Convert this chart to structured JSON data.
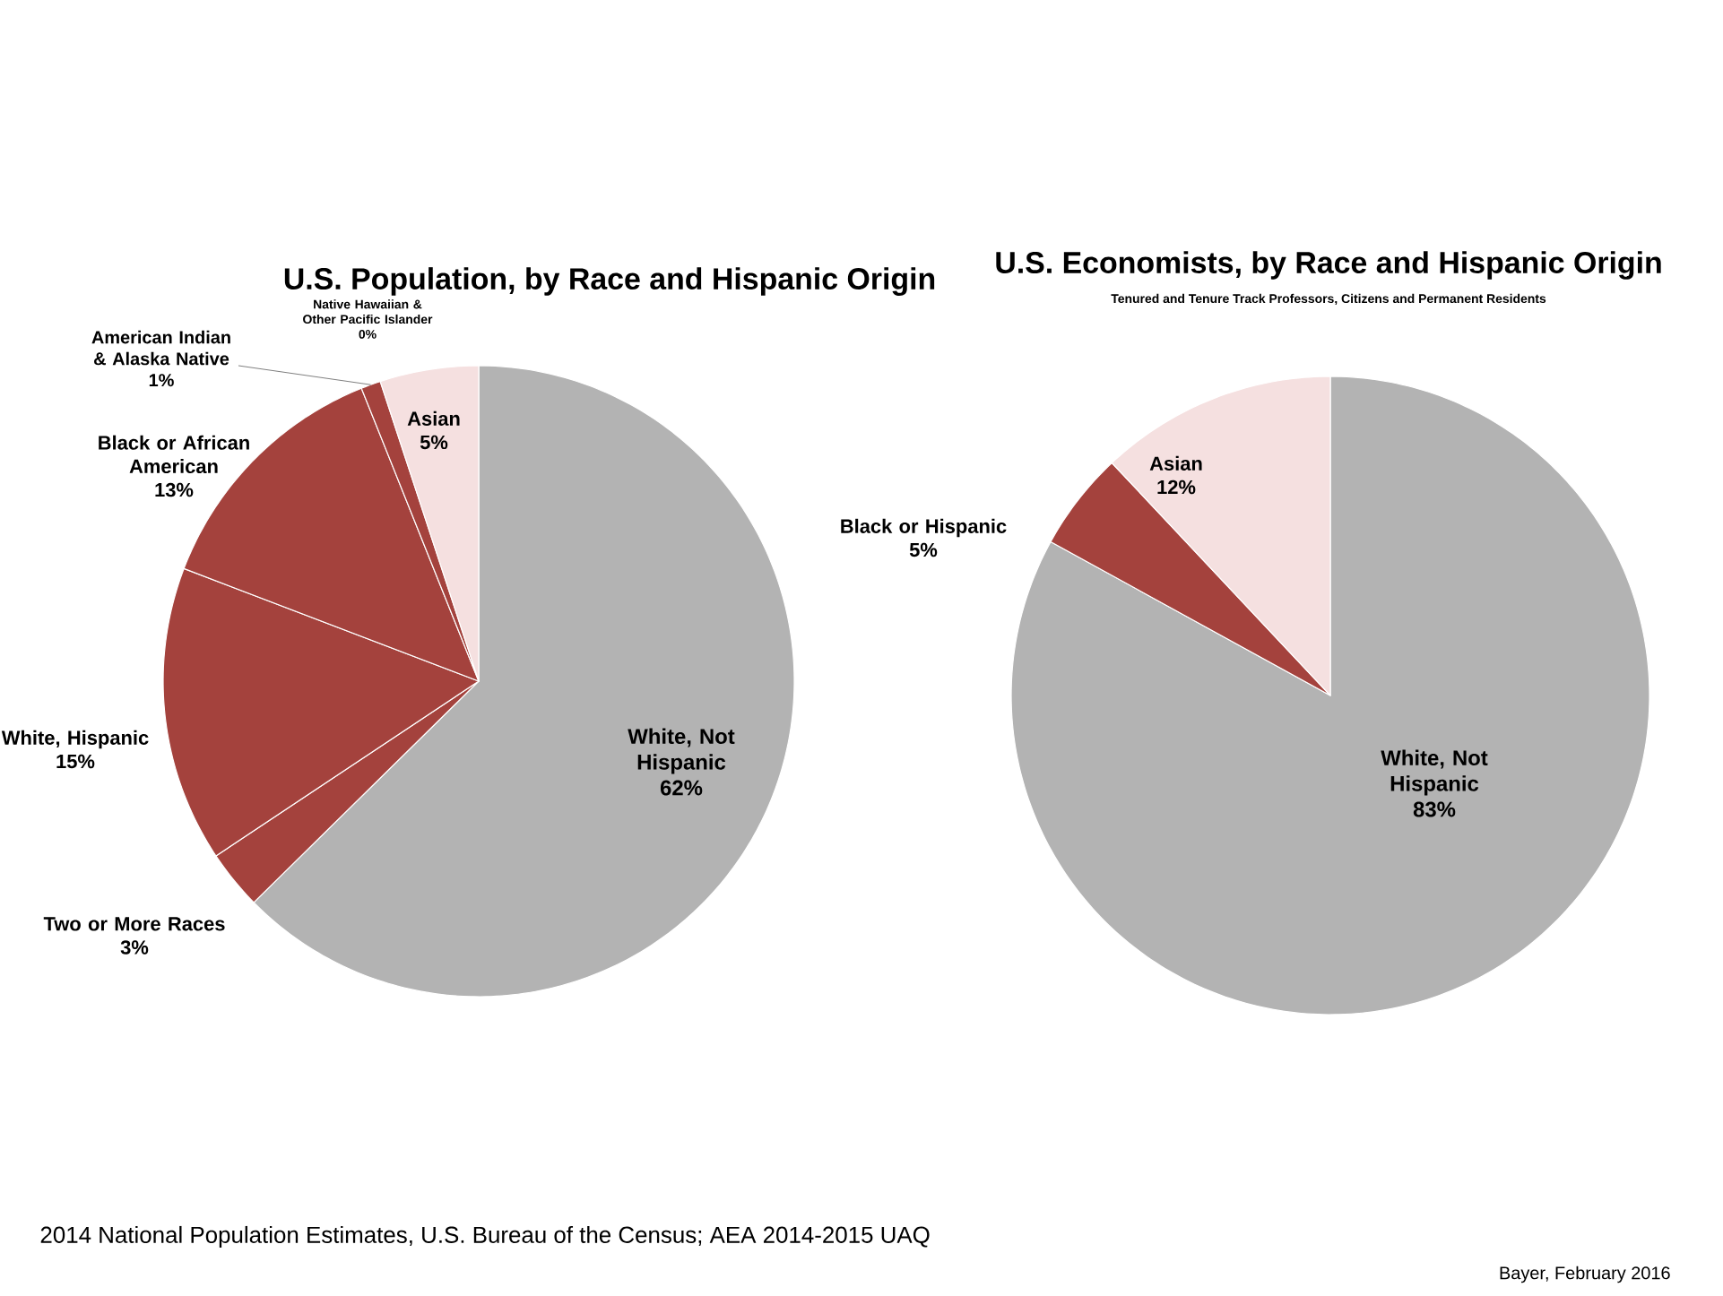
{
  "chart_data": [
    {
      "type": "pie",
      "title": "U.S. Population, by Race and Hispanic Origin",
      "categories": [
        "White, Not Hispanic",
        "Two or More Races",
        "White, Hispanic",
        "Black or African American",
        "American Indian & Alaska Native",
        "Native Hawaiian & Other Pacific Islander",
        "Asian"
      ],
      "values": [
        62,
        3,
        15,
        13,
        1,
        0,
        5
      ],
      "value_labels": [
        "62%",
        "3%",
        "15%",
        "13%",
        "1%",
        "0%",
        "5%"
      ],
      "colors": [
        "#b3b3b3",
        "#a4423d",
        "#a4423d",
        "#a4423d",
        "#a4423d",
        "#a4423d",
        "#f5e0e0"
      ],
      "annotations": [
        "2014 National Population Estimates, U.S. Bureau of the Census; AEA 2014-2015 UAQ"
      ]
    },
    {
      "type": "pie",
      "title": "U.S. Economists, by Race and Hispanic Origin",
      "subtitle": "Tenured and Tenure Track Professors, Citizens and Permanent Residents",
      "categories": [
        "White, Not Hispanic",
        "Black or Hispanic",
        "Asian"
      ],
      "values": [
        83,
        5,
        12
      ],
      "value_labels": [
        "83%",
        "5%",
        "12%"
      ],
      "colors": [
        "#b3b3b3",
        "#a4423d",
        "#f5e0e0"
      ],
      "annotations": [
        "Bayer, February 2016"
      ]
    }
  ]
}
